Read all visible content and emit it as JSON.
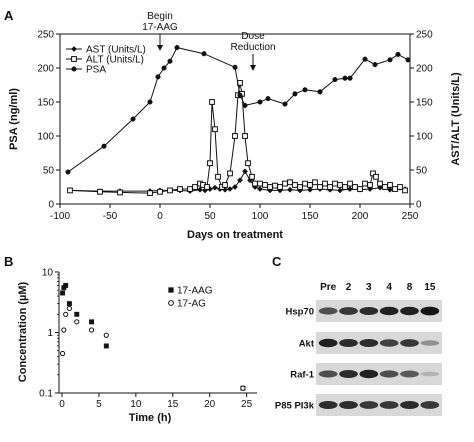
{
  "panels": {
    "a": "A",
    "b": "B",
    "c": "C"
  },
  "chart_data": [
    {
      "panel": "A",
      "type": "line",
      "xlabel": "Days on treatment",
      "ylabel_left": "PSA (ng/ml)",
      "ylabel_right": "AST/ALT (Units/L)",
      "xlim": [
        -100,
        250
      ],
      "ylim_left": [
        0,
        250
      ],
      "ylim_right": [
        0,
        250
      ],
      "x_ticks": [
        -100,
        -50,
        0,
        50,
        100,
        150,
        200,
        250
      ],
      "y_ticks_left": [
        0,
        50,
        100,
        150,
        200,
        250
      ],
      "y_ticks_right": [
        0,
        50,
        100,
        150,
        200,
        250
      ],
      "legend": "top-left",
      "annotations": [
        {
          "lines": [
            "Begin",
            "17-AAG"
          ],
          "x": 0
        },
        {
          "lines": [
            "Dose",
            "Reduction"
          ],
          "x": 93
        }
      ],
      "series": [
        {
          "name": "AST (Units/L)",
          "marker": "diamond",
          "axis": "right",
          "x": [
            -90,
            -60,
            -40,
            -10,
            0,
            10,
            20,
            30,
            40,
            45,
            50,
            55,
            60,
            65,
            70,
            75,
            80,
            85,
            90,
            95,
            100,
            110,
            120,
            130,
            140,
            150,
            160,
            170,
            180,
            190,
            200,
            210,
            220,
            230,
            240,
            245
          ],
          "y": [
            20,
            19,
            19,
            19,
            20,
            20,
            20,
            19,
            21,
            20,
            22,
            24,
            22,
            21,
            22,
            25,
            35,
            48,
            35,
            25,
            22,
            20,
            20,
            21,
            20,
            21,
            22,
            21,
            20,
            22,
            21,
            22,
            24,
            21,
            24,
            22
          ]
        },
        {
          "name": "ALT (Units/L)",
          "marker": "square",
          "axis": "right",
          "x": [
            -90,
            -60,
            -40,
            -10,
            0,
            10,
            20,
            30,
            35,
            40,
            43,
            47,
            50,
            52,
            55,
            58,
            62,
            65,
            70,
            75,
            78,
            80,
            82,
            85,
            88,
            92,
            95,
            100,
            105,
            110,
            115,
            120,
            125,
            130,
            135,
            140,
            145,
            150,
            155,
            160,
            165,
            170,
            175,
            180,
            185,
            190,
            195,
            200,
            205,
            210,
            213,
            216,
            220,
            225,
            230,
            235,
            240,
            245
          ],
          "y": [
            20,
            18,
            17,
            16,
            18,
            20,
            22,
            22,
            25,
            30,
            28,
            25,
            60,
            150,
            110,
            40,
            25,
            28,
            45,
            100,
            160,
            178,
            162,
            100,
            60,
            40,
            30,
            30,
            28,
            25,
            27,
            25,
            30,
            32,
            28,
            25,
            30,
            28,
            32,
            25,
            30,
            25,
            30,
            28,
            25,
            30,
            25,
            22,
            30,
            28,
            45,
            40,
            30,
            25,
            28,
            22,
            25,
            20
          ]
        },
        {
          "name": "PSA",
          "marker": "circle",
          "axis": "left",
          "x": [
            -92,
            -56,
            -27,
            -10,
            -2,
            4,
            10,
            17,
            44,
            75,
            80,
            85,
            100,
            108,
            125,
            135,
            145,
            160,
            175,
            185,
            190,
            205,
            215,
            230,
            238,
            248
          ],
          "y": [
            47,
            85,
            125,
            150,
            187,
            200,
            210,
            230,
            221,
            201,
            160,
            145,
            150,
            155,
            147,
            162,
            168,
            165,
            183,
            185,
            185,
            213,
            205,
            212,
            220,
            212
          ]
        }
      ]
    },
    {
      "panel": "B",
      "type": "scatter",
      "xlabel": "Time (h)",
      "ylabel": "Concentration (µM)",
      "xlim": [
        0,
        26
      ],
      "ylim": [
        0.1,
        10
      ],
      "yscale": "log",
      "x_ticks": [
        0,
        5,
        10,
        15,
        20,
        25
      ],
      "y_ticks": [
        {
          "value": 0.1,
          "label": "0.1"
        },
        {
          "value": 1,
          "label": "1"
        },
        {
          "value": 10,
          "label": "10"
        }
      ],
      "legend": "top-right",
      "series": [
        {
          "name": "17-AAG",
          "marker": "filled-square",
          "x": [
            0.083,
            0.25,
            0.5,
            1,
            2,
            4,
            6,
            24.5
          ],
          "y": [
            4.5,
            5.5,
            6.0,
            3.0,
            2.0,
            1.5,
            0.6,
            0.12
          ]
        },
        {
          "name": "17-AG",
          "marker": "open-circle",
          "x": [
            0.083,
            0.25,
            0.5,
            1,
            2,
            4,
            6,
            24.5
          ],
          "y": [
            0.45,
            1.1,
            2.0,
            2.5,
            1.5,
            1.1,
            0.9,
            0.12
          ]
        }
      ]
    },
    {
      "panel": "C",
      "type": "western-blot",
      "lanes": [
        "Pre",
        "2",
        "3",
        "4",
        "8",
        "15"
      ],
      "bands": [
        {
          "name": "Hsp70",
          "intensity": [
            0.7,
            0.8,
            0.85,
            0.9,
            0.9,
            0.95
          ]
        },
        {
          "name": "Akt",
          "intensity": [
            0.9,
            0.85,
            0.85,
            0.75,
            0.8,
            0.4
          ]
        },
        {
          "name": "Raf-1",
          "intensity": [
            0.7,
            0.85,
            0.9,
            0.7,
            0.65,
            0.25
          ]
        },
        {
          "name": "P85 PI3k",
          "intensity": [
            0.85,
            0.85,
            0.8,
            0.8,
            0.85,
            0.8
          ]
        }
      ]
    }
  ]
}
